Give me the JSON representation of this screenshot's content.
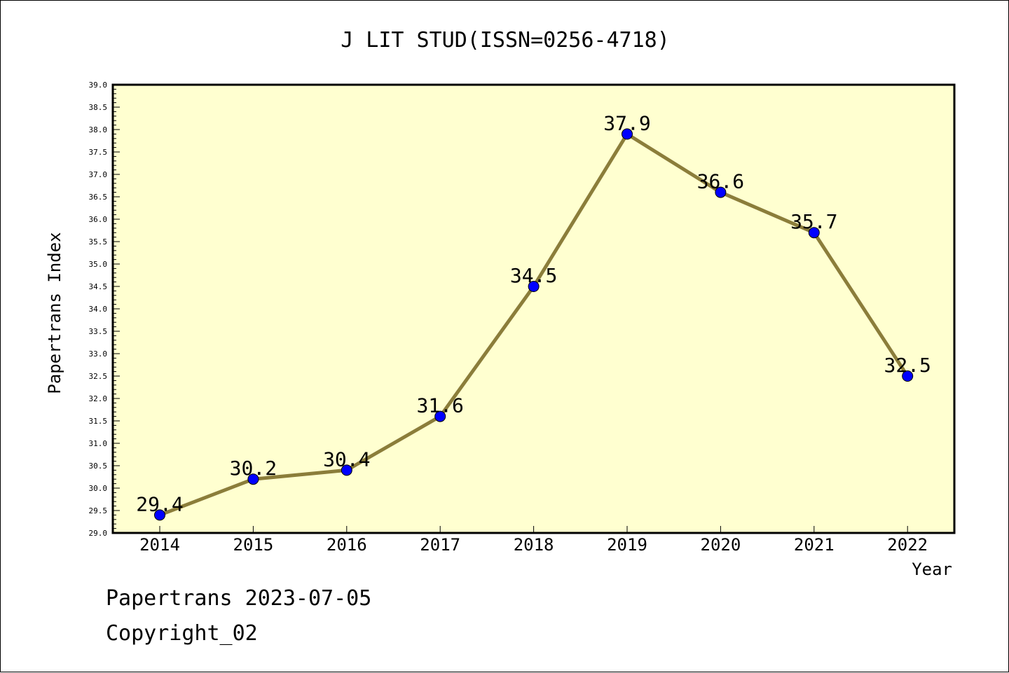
{
  "chart_data": {
    "type": "line",
    "title": "J LIT STUD(ISSN=0256-4718)",
    "xlabel": "Year",
    "ylabel": "Papertrans Index",
    "categories": [
      "2014",
      "2015",
      "2016",
      "2017",
      "2018",
      "2019",
      "2020",
      "2021",
      "2022"
    ],
    "values": [
      29.4,
      30.2,
      30.4,
      31.6,
      34.5,
      37.9,
      36.6,
      35.7,
      32.5
    ],
    "data_labels": [
      "29.4",
      "30.2",
      "30.4",
      "31.6",
      "34.5",
      "37.9",
      "36.6",
      "35.7",
      "32.5"
    ],
    "ylim": [
      29.0,
      39.0
    ],
    "yticks": [
      "29.0",
      "29.5",
      "30.0",
      "30.5",
      "31.0",
      "31.5",
      "32.0",
      "32.5",
      "33.0",
      "33.5",
      "34.0",
      "34.5",
      "35.0",
      "35.5",
      "36.0",
      "36.5",
      "37.0",
      "37.5",
      "38.0",
      "38.5",
      "39.0"
    ],
    "grid": false,
    "colors": {
      "plot_background": "#ffffd0",
      "line": "#8b7d3a",
      "marker": "#0000ff"
    }
  },
  "footer": {
    "line1": "Papertrans 2023-07-05",
    "line2": "Copyright_02"
  }
}
